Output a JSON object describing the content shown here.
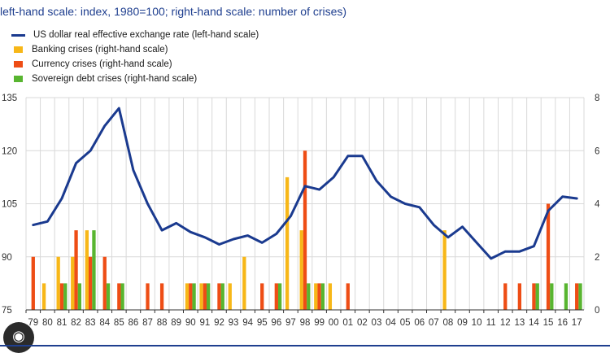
{
  "subtitle": "left-hand scale: index, 1980=100; right-hand scale: number of crises)",
  "colors": {
    "usd": "#1a3a8f",
    "banking": "#f7b718",
    "currency": "#ee4d15",
    "sovereign": "#58b530",
    "grid": "#d9d9d9",
    "axis": "#333333",
    "text": "#333333"
  },
  "legend": [
    {
      "key": "usd",
      "label": "US dollar real effective exchange rate (left-hand scale)",
      "kind": "line"
    },
    {
      "key": "banking",
      "label": "Banking crises (right-hand scale)",
      "kind": "bar"
    },
    {
      "key": "currency",
      "label": "Currency crises (right-hand scale)",
      "kind": "bar"
    },
    {
      "key": "sovereign",
      "label": "Sovereign debt crises (right-hand scale)",
      "kind": "bar"
    }
  ],
  "bottom_icon": "lens-icon",
  "chart_data": {
    "type": "bar+line",
    "categories": [
      "79",
      "80",
      "81",
      "82",
      "83",
      "84",
      "85",
      "86",
      "87",
      "88",
      "89",
      "90",
      "91",
      "92",
      "93",
      "94",
      "95",
      "96",
      "97",
      "98",
      "99",
      "00",
      "01",
      "02",
      "03",
      "04",
      "05",
      "06",
      "07",
      "08",
      "09",
      "10",
      "11",
      "12",
      "13",
      "14",
      "15",
      "16",
      "17"
    ],
    "ylim_left": [
      75,
      135
    ],
    "yticks_left": [
      "135",
      "120",
      "105",
      "90",
      "75"
    ],
    "ylim_right": [
      0,
      8
    ],
    "yticks_right": [
      "8",
      "6",
      "4",
      "2",
      "0"
    ],
    "grid": true,
    "series": [
      {
        "name": "US dollar real effective exchange rate (left-hand scale)",
        "key": "usd",
        "axis": "left",
        "type": "line",
        "values": [
          99,
          100,
          106.5,
          116.5,
          120,
          127,
          132,
          114.5,
          105,
          97.5,
          99.5,
          97,
          95.5,
          93.5,
          95,
          96,
          94,
          96.5,
          101.5,
          110,
          109,
          112.5,
          118.5,
          118.5,
          111.5,
          107,
          105,
          104,
          99,
          95.5,
          98.5,
          94,
          89.5,
          91.5,
          91.5,
          93,
          103,
          107,
          106.5
        ]
      },
      {
        "name": "Banking crises (right-hand scale)",
        "key": "banking",
        "axis": "right",
        "type": "bar",
        "values": [
          0,
          1,
          2,
          2,
          3,
          0,
          0,
          0,
          0,
          0,
          0,
          1,
          1,
          0,
          1,
          2,
          0,
          0,
          5,
          3,
          1,
          1,
          0,
          0,
          0,
          0,
          0,
          0,
          0,
          3,
          0,
          0,
          0,
          0,
          0,
          0,
          0,
          0,
          0
        ]
      },
      {
        "name": "Currency crises (right-hand scale)",
        "key": "currency",
        "axis": "right",
        "type": "bar",
        "values": [
          2,
          0,
          1,
          3,
          2,
          2,
          1,
          0,
          1,
          1,
          0,
          1,
          1,
          1,
          0,
          0,
          1,
          1,
          0,
          6,
          1,
          0,
          1,
          0,
          0,
          0,
          0,
          0,
          0,
          0,
          0,
          0,
          0,
          1,
          1,
          1,
          4,
          0,
          1
        ]
      },
      {
        "name": "Sovereign debt crises (right-hand scale)",
        "key": "sovereign",
        "axis": "right",
        "type": "bar",
        "values": [
          0,
          0,
          1,
          1,
          3,
          1,
          1,
          0,
          0,
          0,
          0,
          1,
          1,
          1,
          0,
          0,
          0,
          1,
          0,
          1,
          1,
          0,
          0,
          0,
          0,
          0,
          0,
          0,
          0,
          0,
          0,
          0,
          0,
          0,
          0,
          1,
          1,
          1,
          1
        ]
      }
    ]
  }
}
